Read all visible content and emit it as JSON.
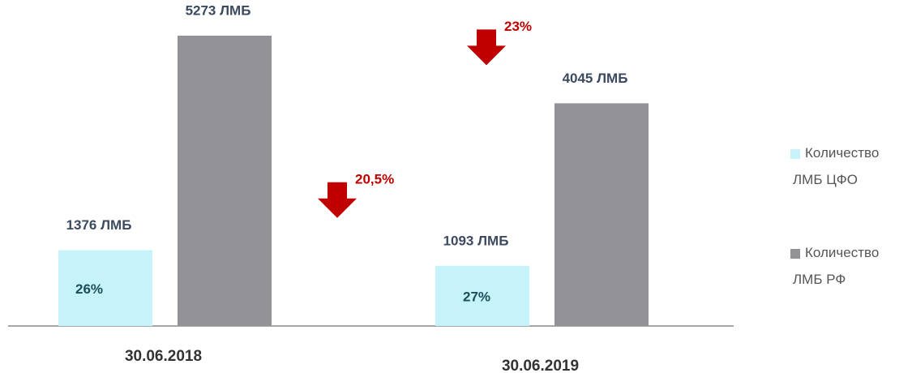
{
  "chart_data": {
    "type": "bar",
    "categories": [
      "30.06.2018",
      "30.06.2019"
    ],
    "series": [
      {
        "name": "Количество ЛМБ ЦФО",
        "color": "#c6f2fa",
        "values": [
          1376,
          1093
        ],
        "value_labels": [
          "1376 ЛМБ",
          "1093 ЛМБ"
        ],
        "inner_labels": [
          "26%",
          "27%"
        ],
        "change_labels": [
          null,
          "20,5%"
        ]
      },
      {
        "name": "Количество ЛМБ РФ",
        "color": "#939297",
        "values": [
          5273,
          4045
        ],
        "value_labels": [
          "5273 ЛМБ",
          "4045 ЛМБ"
        ],
        "change_labels": [
          null,
          "23%"
        ]
      }
    ],
    "legend": "right"
  }
}
